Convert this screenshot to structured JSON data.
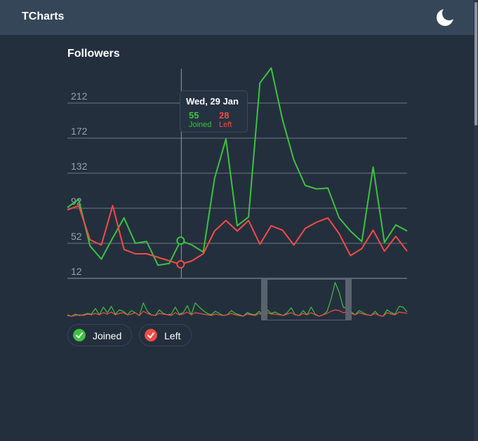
{
  "app": {
    "title": "TCharts",
    "theme_icon": "moon-icon"
  },
  "chart_data": {
    "type": "line",
    "title": "Followers",
    "yticks": [
      12,
      52,
      92,
      132,
      172,
      212
    ],
    "ylim": [
      12,
      252
    ],
    "grid": true,
    "series": [
      {
        "name": "Joined",
        "color": "#3cc23f",
        "values": [
          93,
          102,
          49,
          34,
          58,
          81,
          52,
          54,
          27,
          29,
          55,
          50,
          42,
          126,
          171,
          72,
          82,
          235,
          252,
          193,
          147,
          118,
          114,
          115,
          81,
          66,
          54,
          139,
          53,
          73,
          66
        ]
      },
      {
        "name": "Left",
        "color": "#f34c44",
        "values": [
          90,
          95,
          56,
          50,
          95,
          45,
          40,
          40,
          36,
          32,
          28,
          32,
          40,
          66,
          78,
          66,
          78,
          51,
          72,
          67,
          50,
          69,
          76,
          81,
          63,
          38,
          46,
          67,
          43,
          60,
          43
        ]
      }
    ],
    "tooltip": {
      "date": "Wed, 29 Jan",
      "values": [
        55,
        28
      ],
      "names": [
        "Joined",
        "Left"
      ]
    },
    "navigator": {
      "joined": [
        2,
        1,
        4,
        2,
        3,
        5,
        4,
        12,
        3,
        14,
        6,
        15,
        4,
        10,
        8,
        3,
        9,
        6,
        2,
        20,
        8,
        3,
        2,
        10,
        5,
        3,
        4,
        14,
        4,
        6,
        16,
        3,
        20,
        14,
        9,
        5,
        3,
        8,
        5,
        2,
        3,
        9,
        5,
        3,
        1,
        6,
        4,
        3,
        8,
        2,
        10,
        5,
        7,
        4,
        2,
        6,
        13,
        3,
        2,
        9,
        3,
        14,
        4,
        1,
        3,
        8,
        26,
        49,
        35,
        14,
        12,
        7,
        3,
        9,
        6,
        3,
        2,
        8,
        2,
        1,
        10,
        6,
        4,
        15,
        14,
        7
      ],
      "left": [
        3,
        1,
        2,
        3,
        2,
        4,
        3,
        5,
        3,
        6,
        4,
        7,
        3,
        5,
        6,
        3,
        4,
        6,
        2,
        8,
        5,
        3,
        2,
        5,
        4,
        3,
        2,
        6,
        3,
        4,
        7,
        3,
        6,
        5,
        4,
        3,
        2,
        4,
        3,
        2,
        3,
        5,
        3,
        2,
        1,
        4,
        3,
        2,
        5,
        2,
        6,
        4,
        4,
        3,
        2,
        4,
        6,
        3,
        2,
        5,
        3,
        6,
        3,
        1,
        3,
        5,
        8,
        10,
        9,
        6,
        7,
        5,
        3,
        6,
        4,
        3,
        2,
        5,
        2,
        1,
        6,
        4,
        3,
        7,
        6,
        5
      ]
    }
  },
  "legend": [
    {
      "label": "Joined",
      "color": "#3cc23f"
    },
    {
      "label": "Left",
      "color": "#f34c44"
    }
  ]
}
